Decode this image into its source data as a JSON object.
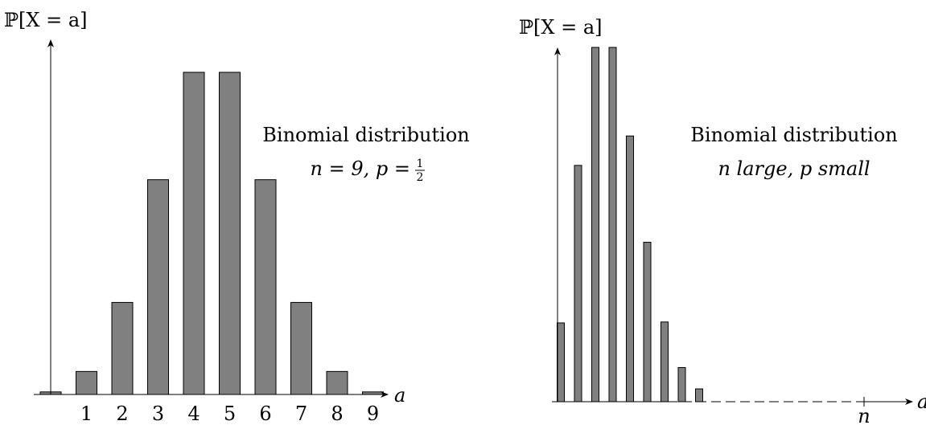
{
  "chart_data": [
    {
      "type": "bar",
      "ylabel": "ℙ[X = a]",
      "xlabel": "a",
      "annotation_line1": "Binomial distribution",
      "annotation_line2_prefix": "n = 9, p = ",
      "annotation_fraction_num": "1",
      "annotation_fraction_den": "2",
      "categories": [
        "0",
        "1",
        "2",
        "3",
        "4",
        "5",
        "6",
        "7",
        "8",
        "9"
      ],
      "tick_labels": [
        "",
        "1",
        "2",
        "3",
        "4",
        "5",
        "6",
        "7",
        "8",
        "9"
      ],
      "values": [
        1,
        9,
        36,
        84,
        126,
        126,
        84,
        36,
        9,
        1
      ],
      "ylim": [
        0,
        140
      ],
      "grid": false
    },
    {
      "type": "bar",
      "ylabel": "ℙ[X = a]",
      "xlabel": "a",
      "annotation_line1": "Binomial distribution",
      "annotation_line2": "n large, p small",
      "x_tick_label": "n",
      "categories": [
        "0",
        "1",
        "2",
        "3",
        "4",
        "5",
        "6",
        "7",
        "8"
      ],
      "values": [
        0.0498,
        0.1494,
        0.224,
        0.224,
        0.168,
        0.1008,
        0.0504,
        0.0216,
        0.0081
      ],
      "ylim": [
        0,
        0.226
      ],
      "grid": false
    }
  ]
}
